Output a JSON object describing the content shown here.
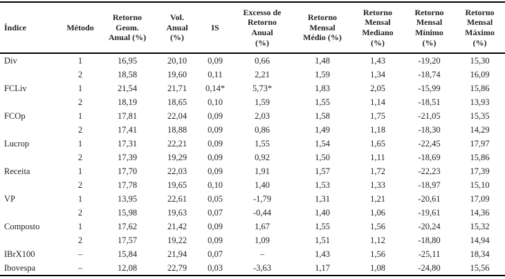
{
  "colors": {
    "background": "#ffffff",
    "text": "#1f1f1f",
    "rule": "#000000"
  },
  "table": {
    "columns": [
      {
        "key": "indice",
        "label": "Índice"
      },
      {
        "key": "metodo",
        "label": "Método"
      },
      {
        "key": "retorno_geom_anual",
        "label": "Retorno\nGeom.\nAnual (%)"
      },
      {
        "key": "vol_anual",
        "label": "Vol.\nAnual\n(%)"
      },
      {
        "key": "is",
        "label": "IS"
      },
      {
        "key": "excesso_retorno_anual",
        "label": "Excesso de\nRetorno\nAnual\n(%)"
      },
      {
        "key": "retorno_mensal_medio",
        "label": "Retorno\nMensal\nMédio (%)"
      },
      {
        "key": "retorno_mensal_mediano",
        "label": "Retorno\nMensal\nMediano\n(%)"
      },
      {
        "key": "retorno_mensal_minimo",
        "label": "Retorno\nMensal\nMínimo\n(%)"
      },
      {
        "key": "retorno_mensal_maximo",
        "label": "Retorno\nMensal\nMáximo\n(%)"
      }
    ],
    "rows": [
      [
        "Div",
        "1",
        "16,95",
        "20,10",
        "0,09",
        "0,66",
        "1,48",
        "1,43",
        "-19,20",
        "15,30"
      ],
      [
        "",
        "2",
        "18,58",
        "19,60",
        "0,11",
        "2,21",
        "1,59",
        "1,34",
        "-18,74",
        "16,09"
      ],
      [
        "FCLiv",
        "1",
        "21,54",
        "21,71",
        "0,14*",
        "5,73*",
        "1,83",
        "2,05",
        "-15,99",
        "15,86"
      ],
      [
        "",
        "2",
        "18,19",
        "18,65",
        "0,10",
        "1,59",
        "1,55",
        "1,14",
        "-18,51",
        "13,93"
      ],
      [
        "FCOp",
        "1",
        "17,81",
        "22,04",
        "0,09",
        "2,03",
        "1,58",
        "1,75",
        "-21,05",
        "15,35"
      ],
      [
        "",
        "2",
        "17,41",
        "18,88",
        "0,09",
        "0,86",
        "1,49",
        "1,18",
        "-18,30",
        "14,29"
      ],
      [
        "Lucrop",
        "1",
        "17,31",
        "22,21",
        "0,09",
        "1,55",
        "1,54",
        "1,65",
        "-22,45",
        "17,97"
      ],
      [
        "",
        "2",
        "17,39",
        "19,29",
        "0,09",
        "0,92",
        "1,50",
        "1,11",
        "-18,69",
        "15,86"
      ],
      [
        "Receita",
        "1",
        "17,70",
        "22,03",
        "0,09",
        "1,91",
        "1,57",
        "1,72",
        "-22,23",
        "17,39"
      ],
      [
        "",
        "2",
        "17,78",
        "19,65",
        "0,10",
        "1,40",
        "1,53",
        "1,33",
        "-18,97",
        "15,10"
      ],
      [
        "VP",
        "1",
        "13,95",
        "22,61",
        "0,05",
        "-1,79",
        "1,31",
        "1,21",
        "-20,61",
        "17,09"
      ],
      [
        "",
        "2",
        "15,98",
        "19,63",
        "0,07",
        "-0,44",
        "1,40",
        "1,06",
        "-19,61",
        "14,36"
      ],
      [
        "Composto",
        "1",
        "17,62",
        "21,42",
        "0,09",
        "1,67",
        "1,55",
        "1,56",
        "-20,24",
        "15,32"
      ],
      [
        "",
        "2",
        "17,57",
        "19,22",
        "0,09",
        "1,09",
        "1,51",
        "1,12",
        "-18,80",
        "14,94"
      ],
      [
        "IBrX100",
        "–",
        "15,84",
        "21,94",
        "0,07",
        "–",
        "1,43",
        "1,56",
        "-25,11",
        "18,34"
      ],
      [
        "Ibovespa",
        "–",
        "12,08",
        "22,79",
        "0,03",
        "-3,63",
        "1,17",
        "1,08",
        "-24,80",
        "15,56"
      ]
    ]
  }
}
